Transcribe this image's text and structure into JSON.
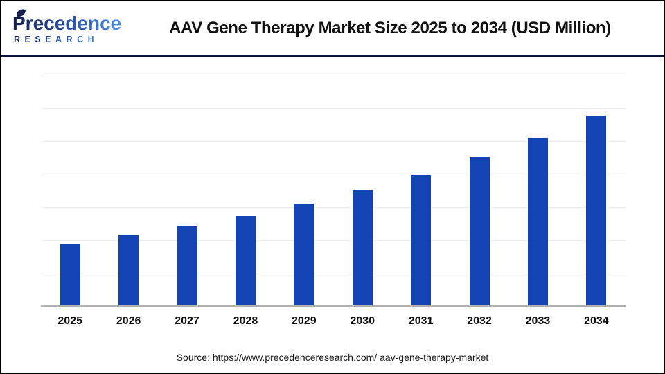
{
  "header": {
    "logo": {
      "primary": "Precedence",
      "secondary": "RESEARCH",
      "icon": "leaf-icon"
    },
    "title": "AAV Gene Therapy Market Size 2025 to 2034 (USD Million)"
  },
  "footer": {
    "source_text": "Source: https://www.precedenceresearch.com/ aav-gene-therapy-market"
  },
  "colors": {
    "bar": "#1444b4",
    "divider": "#0d1238",
    "page_border": "#000000",
    "axis_line": "#b0b0b0",
    "gridline": "#f1efec",
    "logo_dark": "#151f4e",
    "logo_light": "#4a8fe2",
    "title_text": "#111111"
  },
  "chart_data": {
    "type": "bar",
    "title": "AAV Gene Therapy Market Size 2025 to 2034 (USD Million)",
    "categories": [
      "2025",
      "2026",
      "2027",
      "2028",
      "2029",
      "2030",
      "2031",
      "2032",
      "2033",
      "2034"
    ],
    "values": [
      2310,
      2620,
      2970,
      3360,
      3810,
      4320,
      4890,
      5550,
      6290,
      7120
    ],
    "values_note": "USD Million, estimated from bar heights; no value labels or y-axis ticks are shown in the chart",
    "xlabel": "",
    "ylabel": "",
    "ylim": [
      0,
      8700
    ],
    "y_axis_labels_visible": false,
    "gridline_count": 7,
    "grid": true,
    "legend": "none",
    "bar_color": "#1444b4"
  }
}
